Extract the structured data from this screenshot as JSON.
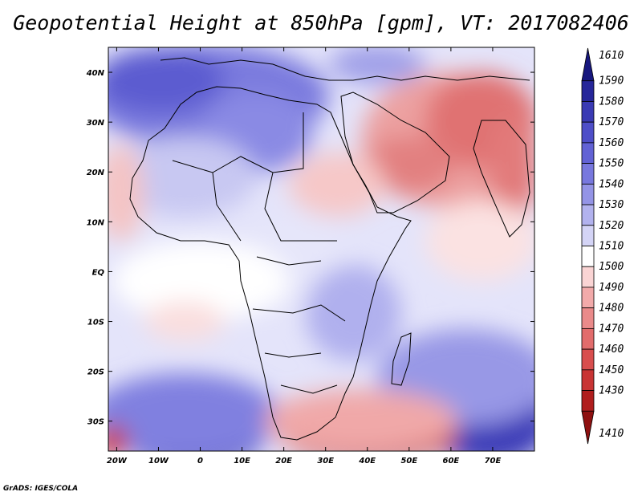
{
  "title": "Geopotential Height at 850hPa [gpm], VT: 2017082406",
  "credit": "GrADS: IGES/COLA",
  "map": {
    "lon_labels": [
      "20W",
      "10W",
      "0",
      "10E",
      "20E",
      "30E",
      "40E",
      "50E",
      "60E",
      "70E"
    ],
    "lon_values": [
      -20,
      -10,
      0,
      10,
      20,
      30,
      40,
      50,
      60,
      70
    ],
    "lat_labels": [
      "40N",
      "30N",
      "20N",
      "10N",
      "EQ",
      "10S",
      "20S",
      "30S"
    ],
    "lat_values": [
      40,
      30,
      20,
      10,
      0,
      -10,
      -20,
      -30
    ],
    "lon_range": [
      -22,
      80
    ],
    "lat_range": [
      -36,
      45
    ]
  },
  "colorbar": {
    "levels": [
      "1610",
      "1590",
      "1580",
      "1570",
      "1560",
      "1550",
      "1540",
      "1530",
      "1520",
      "1510",
      "1500",
      "1490",
      "1480",
      "1470",
      "1460",
      "1450",
      "1430",
      "1410"
    ],
    "colors": [
      "#17177e",
      "#26269a",
      "#3a3ab4",
      "#4e4ec8",
      "#6262d5",
      "#7878de",
      "#9494e6",
      "#b2b2ee",
      "#d4d4f6",
      "#ffffff",
      "#fad4d4",
      "#f2aaaa",
      "#ea8a8a",
      "#e26c6c",
      "#d84e4e",
      "#c83434",
      "#b01e1e",
      "#8e1010"
    ]
  }
}
